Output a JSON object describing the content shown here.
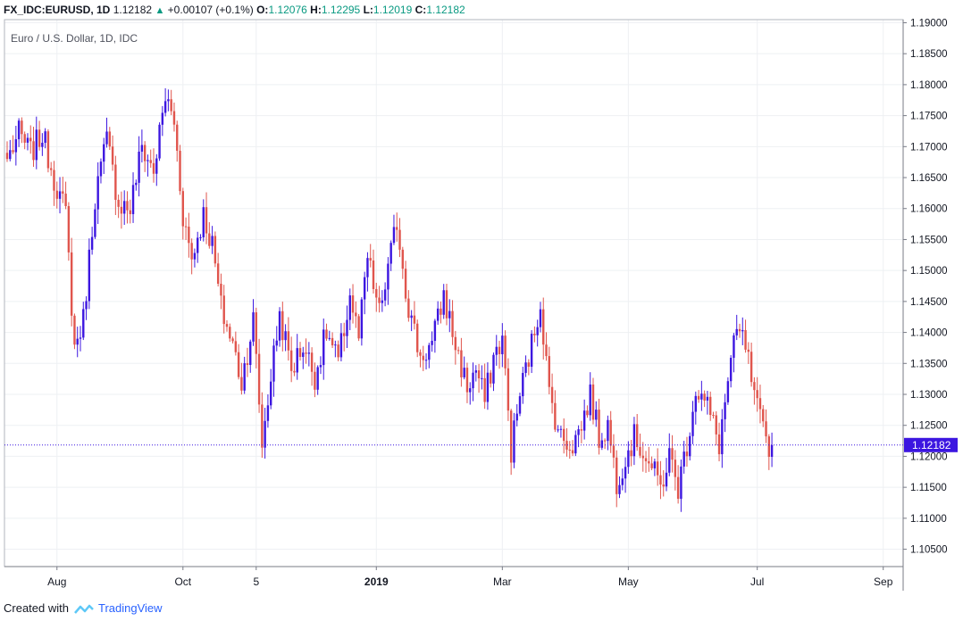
{
  "header": {
    "symbol": "FX_IDC:EURUSD, 1D",
    "last": "1.12182",
    "change": "+0.00107 (+0.1%)",
    "o_label": "O:",
    "o_value": "1.12076",
    "h_label": "H:",
    "h_value": "1.12295",
    "l_label": "L:",
    "l_value": "1.12019",
    "c_label": "C:",
    "c_value": "1.12182"
  },
  "chart_data": {
    "type": "candlestick",
    "title": "Euro / U.S. Dollar, 1D, IDC",
    "ylim": [
      1.1022,
      1.1905
    ],
    "y_ticks": [
      "1.19000",
      "1.18500",
      "1.18000",
      "1.17500",
      "1.17000",
      "1.16500",
      "1.16000",
      "1.15500",
      "1.15000",
      "1.14500",
      "1.14000",
      "1.13500",
      "1.13000",
      "1.12500",
      "1.12000",
      "1.11500",
      "1.11000",
      "1.10500"
    ],
    "x_ticks": [
      {
        "label": "Aug",
        "bold": false,
        "i": 17
      },
      {
        "label": "Oct",
        "bold": false,
        "i": 60
      },
      {
        "label": "5",
        "bold": false,
        "i": 85
      },
      {
        "label": "2019",
        "bold": true,
        "i": 126
      },
      {
        "label": "Mar",
        "bold": false,
        "i": 169
      },
      {
        "label": "May",
        "bold": false,
        "i": 212
      },
      {
        "label": "Jul",
        "bold": false,
        "i": 256
      },
      {
        "label": "Sep",
        "bold": false,
        "i": 299
      }
    ],
    "price_line": 1.12182,
    "price_label": "1.12182",
    "grid": true,
    "up_color": "#3c16e0",
    "down_color": "#e0554d",
    "close_path": [
      [
        0,
        1.168
      ],
      [
        4,
        1.172
      ],
      [
        8,
        1.169
      ],
      [
        12,
        1.172
      ],
      [
        16,
        1.165
      ],
      [
        20,
        1.159
      ],
      [
        23,
        1.1375
      ],
      [
        26,
        1.142
      ],
      [
        30,
        1.162
      ],
      [
        34,
        1.171
      ],
      [
        38,
        1.161
      ],
      [
        42,
        1.16
      ],
      [
        46,
        1.17
      ],
      [
        50,
        1.166
      ],
      [
        54,
        1.178
      ],
      [
        57,
        1.174
      ],
      [
        60,
        1.159
      ],
      [
        63,
        1.152
      ],
      [
        67,
        1.159
      ],
      [
        70,
        1.154
      ],
      [
        73,
        1.144
      ],
      [
        77,
        1.138
      ],
      [
        80,
        1.132
      ],
      [
        84,
        1.142
      ],
      [
        87,
        1.122
      ],
      [
        90,
        1.133
      ],
      [
        93,
        1.143
      ],
      [
        97,
        1.134
      ],
      [
        101,
        1.138
      ],
      [
        105,
        1.133
      ],
      [
        109,
        1.14
      ],
      [
        113,
        1.135
      ],
      [
        117,
        1.146
      ],
      [
        120,
        1.139
      ],
      [
        123,
        1.152
      ],
      [
        127,
        1.143
      ],
      [
        130,
        1.15
      ],
      [
        133,
        1.158
      ],
      [
        137,
        1.144
      ],
      [
        141,
        1.136
      ],
      [
        145,
        1.138
      ],
      [
        149,
        1.146
      ],
      [
        153,
        1.138
      ],
      [
        157,
        1.131
      ],
      [
        160,
        1.134
      ],
      [
        163,
        1.129
      ],
      [
        166,
        1.136
      ],
      [
        169,
        1.139
      ],
      [
        172,
        1.121
      ],
      [
        175,
        1.13
      ],
      [
        179,
        1.138
      ],
      [
        182,
        1.145
      ],
      [
        185,
        1.13
      ],
      [
        189,
        1.123
      ],
      [
        193,
        1.122
      ],
      [
        196,
        1.125
      ],
      [
        199,
        1.13
      ],
      [
        202,
        1.123
      ],
      [
        205,
        1.125
      ],
      [
        208,
        1.116
      ],
      [
        211,
        1.12
      ],
      [
        214,
        1.123
      ],
      [
        217,
        1.121
      ],
      [
        220,
        1.118
      ],
      [
        223,
        1.115
      ],
      [
        226,
        1.12
      ],
      [
        229,
        1.115
      ],
      [
        232,
        1.122
      ],
      [
        235,
        1.131
      ],
      [
        239,
        1.128
      ],
      [
        243,
        1.122
      ],
      [
        246,
        1.132
      ],
      [
        249,
        1.14
      ],
      [
        252,
        1.138
      ],
      [
        255,
        1.129
      ],
      [
        258,
        1.124
      ],
      [
        260,
        1.122
      ],
      [
        261,
        1.1218
      ]
    ]
  },
  "footer": {
    "created_with": "Created with",
    "brand": "TradingView"
  }
}
